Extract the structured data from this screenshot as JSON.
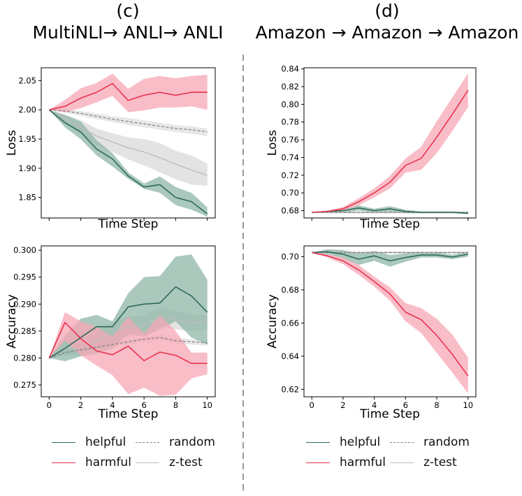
{
  "colors": {
    "helpful": "#2e6b59",
    "helpful_band": "#8fb5a7",
    "harmful": "#e8344e",
    "harmful_band": "#f7a7b6",
    "random": "#7f7f7f",
    "ztest": "#bdbdbd",
    "ztest_band": "#d9d9d9"
  },
  "panels": {
    "c": {
      "label": "(c)",
      "title": "MultiNLI→ ANLI→ ANLI"
    },
    "d": {
      "label": "(d)",
      "title": "Amazon → Amazon → Amazon"
    }
  },
  "legend": {
    "helpful": "helpful",
    "harmful": "harmful",
    "random": "random",
    "ztest": "z-test"
  },
  "chart_data": [
    {
      "id": "c_loss",
      "type": "line",
      "panel": "(c)",
      "xlabel": "Time Step",
      "ylabel": "Loss",
      "xlim": [
        -0.5,
        10.5
      ],
      "ylim": [
        1.815,
        2.072
      ],
      "x": [
        0,
        1,
        2,
        3,
        4,
        5,
        6,
        7,
        8,
        9,
        10
      ],
      "xticks": [],
      "yticks": [
        1.85,
        1.9,
        1.95,
        2.0,
        2.05
      ],
      "ytick_decimals": 2,
      "series": [
        {
          "name": "z-test",
          "style": "ztest",
          "values": [
            2.0,
            1.985,
            1.97,
            1.955,
            1.945,
            1.935,
            1.928,
            1.918,
            1.907,
            1.897,
            1.888
          ],
          "lower": [
            2.0,
            1.978,
            1.958,
            1.94,
            1.928,
            1.915,
            1.905,
            1.893,
            1.881,
            1.872,
            1.87
          ],
          "upper": [
            2.0,
            1.992,
            1.982,
            1.968,
            1.96,
            1.953,
            1.95,
            1.943,
            1.93,
            1.922,
            1.908
          ]
        },
        {
          "name": "random",
          "style": "random",
          "values": [
            2.0,
            1.998,
            1.994,
            1.989,
            1.984,
            1.98,
            1.976,
            1.972,
            1.968,
            1.966,
            1.962
          ],
          "lower": [
            2.0,
            1.995,
            1.99,
            1.984,
            1.979,
            1.974,
            1.97,
            1.966,
            1.962,
            1.959,
            1.955
          ],
          "upper": [
            2.0,
            2.001,
            1.998,
            1.994,
            1.989,
            1.986,
            1.982,
            1.978,
            1.974,
            1.972,
            1.968
          ]
        },
        {
          "name": "helpful",
          "style": "helpful",
          "values": [
            2.0,
            1.978,
            1.962,
            1.933,
            1.916,
            1.887,
            1.868,
            1.872,
            1.85,
            1.843,
            1.822
          ],
          "lower": [
            2.0,
            1.97,
            1.95,
            1.922,
            1.903,
            1.882,
            1.865,
            1.858,
            1.837,
            1.829,
            1.817
          ],
          "upper": [
            2.0,
            1.991,
            1.98,
            1.948,
            1.926,
            1.893,
            1.874,
            1.886,
            1.868,
            1.858,
            1.833
          ]
        },
        {
          "name": "harmful",
          "style": "harmful",
          "values": [
            2.0,
            2.006,
            2.02,
            2.03,
            2.045,
            2.016,
            2.025,
            2.03,
            2.025,
            2.03,
            2.03
          ],
          "lower": [
            2.0,
            1.996,
            2.003,
            2.013,
            2.024,
            1.996,
            1.999,
            2.004,
            2.004,
            2.006,
            2.0
          ],
          "upper": [
            2.0,
            2.017,
            2.037,
            2.046,
            2.062,
            2.036,
            2.053,
            2.058,
            2.054,
            2.058,
            2.06
          ]
        }
      ]
    },
    {
      "id": "c_acc",
      "type": "line",
      "panel": "(c)",
      "xlabel": "Time Step",
      "ylabel": "Accuracy",
      "xlim": [
        -0.5,
        10.5
      ],
      "ylim": [
        0.2728,
        0.3008
      ],
      "x": [
        0,
        1,
        2,
        3,
        4,
        5,
        6,
        7,
        8,
        9,
        10
      ],
      "xticks": [
        0,
        2,
        4,
        6,
        8,
        10
      ],
      "yticks": [
        0.275,
        0.28,
        0.285,
        0.29,
        0.295,
        0.3
      ],
      "ytick_decimals": 3,
      "series": [
        {
          "name": "z-test",
          "style": "ztest",
          "values": [
            0.28,
            0.282,
            0.2815,
            0.2832,
            0.2848,
            0.2858,
            0.286,
            0.2876,
            0.287,
            0.2865,
            0.2868
          ],
          "lower": [
            0.28,
            0.2805,
            0.2805,
            0.282,
            0.283,
            0.2838,
            0.2843,
            0.2858,
            0.2853,
            0.285,
            0.2855
          ],
          "upper": [
            0.28,
            0.2835,
            0.2825,
            0.2845,
            0.2866,
            0.2878,
            0.2877,
            0.2894,
            0.2887,
            0.288,
            0.288
          ]
        },
        {
          "name": "random",
          "style": "random",
          "values": [
            0.28,
            0.281,
            0.2815,
            0.282,
            0.2825,
            0.283,
            0.2835,
            0.2838,
            0.2832,
            0.283,
            0.2828
          ],
          "lower": [
            0.28,
            0.2806,
            0.281,
            0.2815,
            0.282,
            0.2825,
            0.283,
            0.2833,
            0.2827,
            0.2825,
            0.2823
          ],
          "upper": [
            0.28,
            0.2814,
            0.282,
            0.2825,
            0.283,
            0.2835,
            0.284,
            0.2843,
            0.2837,
            0.2835,
            0.2833
          ]
        },
        {
          "name": "helpful",
          "style": "helpful",
          "values": [
            0.28,
            0.2818,
            0.2838,
            0.2858,
            0.2858,
            0.2895,
            0.29,
            0.2902,
            0.2932,
            0.2915,
            0.2885
          ],
          "lower": [
            0.28,
            0.2794,
            0.2803,
            0.2808,
            0.2818,
            0.2845,
            0.284,
            0.2853,
            0.2868,
            0.2838,
            0.2825
          ],
          "upper": [
            0.28,
            0.2842,
            0.2873,
            0.288,
            0.2868,
            0.292,
            0.295,
            0.2952,
            0.2988,
            0.2992,
            0.2945
          ]
        },
        {
          "name": "harmful",
          "style": "harmful",
          "values": [
            0.28,
            0.2866,
            0.2836,
            0.2813,
            0.2806,
            0.2822,
            0.2795,
            0.2811,
            0.2805,
            0.279,
            0.279
          ],
          "lower": [
            0.28,
            0.2832,
            0.2805,
            0.2786,
            0.2768,
            0.2733,
            0.2745,
            0.273,
            0.2732,
            0.2762,
            0.277
          ],
          "upper": [
            0.28,
            0.2885,
            0.2868,
            0.2858,
            0.284,
            0.2876,
            0.2846,
            0.288,
            0.285,
            0.281,
            0.281
          ]
        }
      ]
    },
    {
      "id": "d_loss",
      "type": "line",
      "panel": "(d)",
      "xlabel": "Time Step",
      "ylabel": "Loss",
      "xlim": [
        -0.5,
        10.5
      ],
      "ylim": [
        0.6717,
        0.8413
      ],
      "x": [
        0,
        1,
        2,
        3,
        4,
        5,
        6,
        7,
        8,
        9,
        10
      ],
      "xticks": [],
      "yticks": [
        0.68,
        0.7,
        0.72,
        0.74,
        0.76,
        0.78,
        0.8,
        0.82,
        0.84
      ],
      "ytick_decimals": 2,
      "series": [
        {
          "name": "z-test",
          "style": "ztest",
          "values": [
            0.678,
            0.678,
            0.678,
            0.678,
            0.678,
            0.678,
            0.678,
            0.678,
            0.678,
            0.678,
            0.678
          ],
          "lower": [
            0.678,
            0.677,
            0.677,
            0.677,
            0.677,
            0.677,
            0.677,
            0.677,
            0.677,
            0.677,
            0.677
          ],
          "upper": [
            0.678,
            0.679,
            0.679,
            0.679,
            0.679,
            0.679,
            0.679,
            0.679,
            0.679,
            0.679,
            0.679
          ]
        },
        {
          "name": "random",
          "style": "random",
          "values": [
            0.678,
            0.678,
            0.678,
            0.678,
            0.678,
            0.678,
            0.678,
            0.678,
            0.678,
            0.678,
            0.678
          ],
          "lower": [
            0.678,
            0.678,
            0.678,
            0.678,
            0.678,
            0.678,
            0.678,
            0.678,
            0.678,
            0.678,
            0.678
          ],
          "upper": [
            0.678,
            0.678,
            0.678,
            0.678,
            0.678,
            0.678,
            0.678,
            0.678,
            0.678,
            0.678,
            0.678
          ]
        },
        {
          "name": "helpful",
          "style": "helpful",
          "values": [
            0.678,
            0.679,
            0.68,
            0.683,
            0.68,
            0.682,
            0.679,
            0.678,
            0.678,
            0.678,
            0.677
          ],
          "lower": [
            0.678,
            0.678,
            0.678,
            0.68,
            0.678,
            0.679,
            0.677,
            0.677,
            0.677,
            0.677,
            0.676
          ],
          "upper": [
            0.678,
            0.68,
            0.682,
            0.686,
            0.682,
            0.685,
            0.681,
            0.679,
            0.679,
            0.679,
            0.678
          ]
        },
        {
          "name": "harmful",
          "style": "harmful",
          "values": [
            0.678,
            0.679,
            0.682,
            0.69,
            0.7,
            0.712,
            0.731,
            0.739,
            0.763,
            0.789,
            0.816
          ],
          "lower": [
            0.678,
            0.678,
            0.68,
            0.686,
            0.695,
            0.705,
            0.723,
            0.726,
            0.745,
            0.77,
            0.797
          ],
          "upper": [
            0.678,
            0.68,
            0.684,
            0.694,
            0.705,
            0.719,
            0.739,
            0.752,
            0.781,
            0.808,
            0.835
          ]
        }
      ]
    },
    {
      "id": "d_acc",
      "type": "line",
      "panel": "(d)",
      "xlabel": "Time Step",
      "ylabel": "Accuracy",
      "xlim": [
        -0.5,
        10.5
      ],
      "ylim": [
        0.6155,
        0.7065
      ],
      "x": [
        0,
        1,
        2,
        3,
        4,
        5,
        6,
        7,
        8,
        9,
        10
      ],
      "xticks": [
        0,
        2,
        4,
        6,
        8,
        10
      ],
      "yticks": [
        0.62,
        0.64,
        0.66,
        0.68,
        0.7
      ],
      "ytick_decimals": 2,
      "series": [
        {
          "name": "z-test",
          "style": "ztest",
          "values": [
            0.7025,
            0.7025,
            0.7025,
            0.7025,
            0.7025,
            0.7025,
            0.7025,
            0.7025,
            0.7025,
            0.7025,
            0.7025
          ],
          "lower": [
            0.7025,
            0.702,
            0.702,
            0.702,
            0.702,
            0.702,
            0.702,
            0.702,
            0.702,
            0.702,
            0.702
          ],
          "upper": [
            0.7025,
            0.703,
            0.703,
            0.703,
            0.703,
            0.703,
            0.703,
            0.703,
            0.703,
            0.703,
            0.703
          ]
        },
        {
          "name": "random",
          "style": "random",
          "values": [
            0.7025,
            0.7025,
            0.7025,
            0.7025,
            0.7025,
            0.7025,
            0.7025,
            0.7025,
            0.7025,
            0.7025,
            0.7025
          ],
          "lower": [
            0.7025,
            0.7025,
            0.7025,
            0.7025,
            0.7025,
            0.7025,
            0.7025,
            0.7025,
            0.7025,
            0.7025,
            0.7025
          ],
          "upper": [
            0.7025,
            0.7025,
            0.7025,
            0.7025,
            0.7025,
            0.7025,
            0.7025,
            0.7025,
            0.7025,
            0.7025,
            0.7025
          ]
        },
        {
          "name": "helpful",
          "style": "helpful",
          "values": [
            0.7025,
            0.703,
            0.7015,
            0.6985,
            0.7005,
            0.6975,
            0.6995,
            0.701,
            0.701,
            0.6998,
            0.7015
          ],
          "lower": [
            0.7025,
            0.7015,
            0.699,
            0.695,
            0.6975,
            0.694,
            0.697,
            0.6995,
            0.6995,
            0.6985,
            0.7
          ],
          "upper": [
            0.7025,
            0.7045,
            0.704,
            0.702,
            0.7035,
            0.701,
            0.702,
            0.7025,
            0.7025,
            0.7012,
            0.703
          ]
        },
        {
          "name": "harmful",
          "style": "harmful",
          "values": [
            0.7025,
            0.7005,
            0.6975,
            0.692,
            0.685,
            0.6775,
            0.6665,
            0.662,
            0.6525,
            0.641,
            0.628
          ],
          "lower": [
            0.7025,
            0.6995,
            0.6955,
            0.689,
            0.682,
            0.6735,
            0.661,
            0.654,
            0.642,
            0.63,
            0.6175
          ],
          "upper": [
            0.7025,
            0.7015,
            0.6995,
            0.695,
            0.688,
            0.6815,
            0.672,
            0.669,
            0.6625,
            0.653,
            0.639
          ]
        }
      ]
    }
  ]
}
